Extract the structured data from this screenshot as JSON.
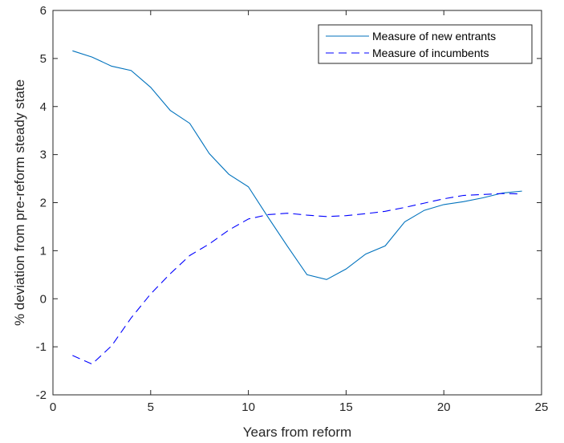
{
  "chart_data": {
    "type": "line",
    "title": "",
    "xlabel": "Years from reform",
    "ylabel": "% deviation from pre-reform steady state",
    "xlim": [
      0,
      25
    ],
    "ylim": [
      -2,
      6
    ],
    "xticks": [
      0,
      5,
      10,
      15,
      20,
      25
    ],
    "yticks": [
      -2,
      -1,
      0,
      1,
      2,
      3,
      4,
      5,
      6
    ],
    "grid": false,
    "legend_position": "top-right",
    "x": [
      1,
      2,
      3,
      4,
      5,
      6,
      7,
      8,
      9,
      10,
      11,
      12,
      13,
      14,
      15,
      16,
      17,
      18,
      19,
      20,
      21,
      22,
      23,
      24
    ],
    "series": [
      {
        "name": "Measure of new entrants",
        "style": "solid",
        "color": "#0072BD",
        "values": [
          5.16,
          5.03,
          4.84,
          4.75,
          4.4,
          3.92,
          3.65,
          3.02,
          2.59,
          2.33,
          1.7,
          1.09,
          0.5,
          0.4,
          0.62,
          0.93,
          1.1,
          1.6,
          1.84,
          1.96,
          2.02,
          2.1,
          2.2,
          2.24
        ]
      },
      {
        "name": "Measure of incumbents",
        "style": "dashed",
        "color": "#0000FF",
        "values": [
          -1.18,
          -1.36,
          -0.98,
          -0.4,
          0.1,
          0.52,
          0.9,
          1.14,
          1.43,
          1.66,
          1.75,
          1.78,
          1.74,
          1.71,
          1.73,
          1.77,
          1.82,
          1.9,
          1.99,
          2.08,
          2.15,
          2.17,
          2.19,
          2.18
        ]
      }
    ]
  }
}
